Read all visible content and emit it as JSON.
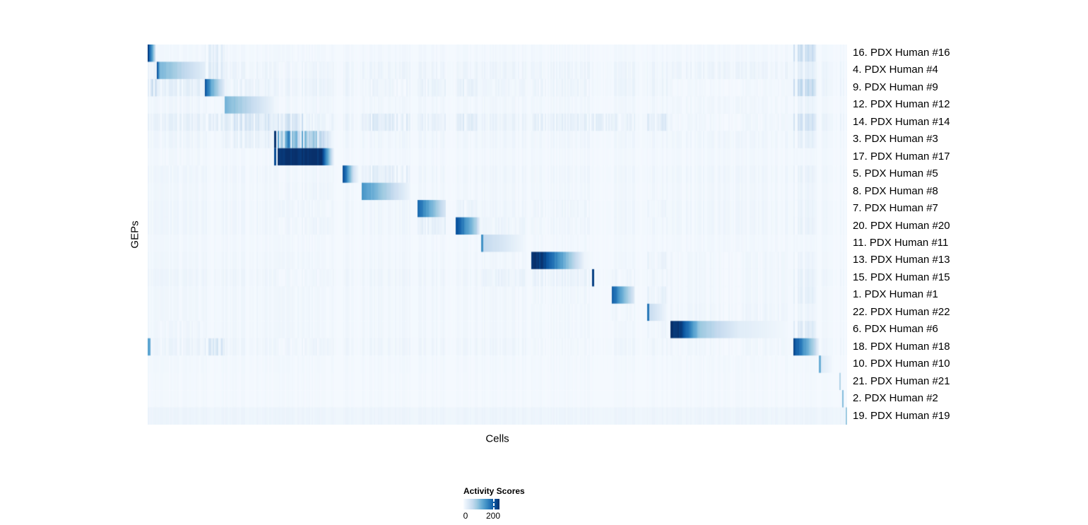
{
  "chart_data": {
    "type": "heatmap",
    "xlabel": "Cells",
    "ylabel": "GEPs",
    "colormap": "Blues",
    "colormap_stops": [
      "#f7fbff",
      "#deebf7",
      "#c6dbef",
      "#9ecae1",
      "#6baed6",
      "#4292c6",
      "#2171b5",
      "#08519c",
      "#08306b"
    ],
    "value_domain": [
      0,
      240
    ],
    "legend": {
      "title": "Activity Scores",
      "ticks": [
        0,
        200
      ],
      "tick_labels": [
        "0",
        "200"
      ]
    },
    "cluster_regions": [
      [
        0,
        0.013
      ],
      [
        0.013,
        0.082
      ],
      [
        0.082,
        0.11
      ],
      [
        0.11,
        0.181
      ],
      [
        0.181,
        0.184
      ],
      [
        0.184,
        0.265
      ],
      [
        0.279,
        0.294
      ],
      [
        0.306,
        0.375
      ],
      [
        0.386,
        0.426
      ],
      [
        0.44,
        0.471
      ],
      [
        0.477,
        0.541
      ],
      [
        0.548,
        0.634
      ],
      [
        0.635,
        0.638
      ],
      [
        0.664,
        0.696
      ],
      [
        0.714,
        0.743
      ],
      [
        0.747,
        0.915
      ],
      [
        0.923,
        0.956
      ],
      [
        0.96,
        0.981
      ],
      [
        0.989,
        0.991
      ],
      [
        0.993,
        0.995
      ],
      [
        0.998,
        1
      ]
    ],
    "rows": [
      {
        "label": "16. PDX Human #16",
        "noise": 6,
        "baseline": 3,
        "segments": [
          [
            0,
            0.011,
            235,
            60,
            "s"
          ],
          [
            0.082,
            0.11,
            25,
            25,
            "k"
          ],
          [
            0.923,
            0.956,
            48,
            48,
            "k"
          ]
        ]
      },
      {
        "label": "4. PDX Human #4",
        "noise": 14,
        "baseline": 3,
        "segments": [
          [
            0.013,
            0.018,
            210,
            110,
            "s"
          ],
          [
            0.018,
            0.082,
            110,
            25,
            "s"
          ],
          [
            0.082,
            0.11,
            30,
            30,
            "k"
          ],
          [
            0.184,
            0.265,
            12,
            12,
            "k"
          ],
          [
            0.923,
            0.956,
            22,
            22,
            "k"
          ]
        ]
      },
      {
        "label": "9. PDX Human #9",
        "noise": 16,
        "baseline": 3,
        "segments": [
          [
            0,
            0.013,
            45,
            45,
            "k"
          ],
          [
            0.082,
            0.092,
            215,
            120,
            "s"
          ],
          [
            0.092,
            0.11,
            120,
            28,
            "s"
          ],
          [
            0.013,
            0.082,
            22,
            22,
            "k"
          ],
          [
            0.11,
            0.181,
            16,
            16,
            "k"
          ],
          [
            0.184,
            0.265,
            16,
            16,
            "k"
          ],
          [
            0.306,
            0.375,
            14,
            14,
            "k"
          ],
          [
            0.386,
            0.426,
            18,
            18,
            "k"
          ],
          [
            0.44,
            0.471,
            20,
            20,
            "k"
          ],
          [
            0.477,
            0.541,
            12,
            12,
            "k"
          ],
          [
            0.548,
            0.634,
            14,
            14,
            "k"
          ],
          [
            0.747,
            0.915,
            8,
            8,
            "k"
          ],
          [
            0.923,
            0.956,
            55,
            55,
            "k"
          ]
        ]
      },
      {
        "label": "12. PDX Human #12",
        "noise": 8,
        "baseline": 3,
        "segments": [
          [
            0.11,
            0.181,
            115,
            14,
            "s"
          ],
          [
            0.013,
            0.082,
            10,
            10,
            "k"
          ],
          [
            0.184,
            0.265,
            10,
            10,
            "k"
          ],
          [
            0.923,
            0.956,
            14,
            14,
            "k"
          ]
        ]
      },
      {
        "label": "14. PDX Human #14",
        "noise": 18,
        "baseline": 3,
        "segments": [
          [
            0.013,
            0.082,
            20,
            20,
            "k"
          ],
          [
            0.082,
            0.11,
            24,
            24,
            "k"
          ],
          [
            0.11,
            0.181,
            38,
            38,
            "k"
          ],
          [
            0.186,
            0.224,
            48,
            48,
            "k"
          ],
          [
            0.306,
            0.375,
            32,
            32,
            "k"
          ],
          [
            0.386,
            0.426,
            20,
            20,
            "k"
          ],
          [
            0.44,
            0.471,
            28,
            28,
            "k"
          ],
          [
            0.548,
            0.696,
            22,
            22,
            "k"
          ],
          [
            0.714,
            0.743,
            30,
            30,
            "k"
          ],
          [
            0.747,
            0.915,
            10,
            10,
            "k"
          ],
          [
            0.923,
            0.956,
            42,
            42,
            "k"
          ]
        ]
      },
      {
        "label": "3. PDX Human #3",
        "noise": 10,
        "baseline": 3,
        "segments": [
          [
            0.181,
            0.184,
            235,
            235,
            "l"
          ],
          [
            0.186,
            0.25,
            170,
            60,
            "k"
          ],
          [
            0.25,
            0.265,
            60,
            16,
            "k"
          ],
          [
            0.013,
            0.082,
            12,
            12,
            "k"
          ],
          [
            0.11,
            0.181,
            20,
            20,
            "k"
          ],
          [
            0.923,
            0.956,
            20,
            20,
            "k"
          ]
        ]
      },
      {
        "label": "17. PDX Human #17",
        "noise": 6,
        "baseline": 3,
        "segments": [
          [
            0.181,
            0.184,
            215,
            215,
            "l"
          ],
          [
            0.186,
            0.248,
            240,
            238,
            "s"
          ],
          [
            0.248,
            0.267,
            238,
            14,
            "s"
          ],
          [
            0.013,
            0.082,
            8,
            8,
            "k"
          ]
        ]
      },
      {
        "label": "5. PDX Human #5",
        "noise": 10,
        "baseline": 3,
        "segments": [
          [
            0.279,
            0.294,
            225,
            60,
            "s"
          ],
          [
            0.294,
            0.302,
            45,
            10,
            "s"
          ],
          [
            0.306,
            0.375,
            26,
            26,
            "k"
          ],
          [
            0.186,
            0.265,
            10,
            10,
            "k"
          ],
          [
            0.923,
            0.956,
            16,
            16,
            "k"
          ]
        ]
      },
      {
        "label": "8. PDX Human #8",
        "noise": 8,
        "baseline": 3,
        "segments": [
          [
            0.306,
            0.375,
            150,
            13,
            "s"
          ],
          [
            0.184,
            0.265,
            12,
            12,
            "k"
          ],
          [
            0.923,
            0.956,
            12,
            12,
            "k"
          ]
        ]
      },
      {
        "label": "7. PDX Human #7",
        "noise": 10,
        "baseline": 3,
        "segments": [
          [
            0.386,
            0.426,
            190,
            38,
            "s"
          ],
          [
            0.44,
            0.471,
            16,
            16,
            "k"
          ],
          [
            0.548,
            0.634,
            12,
            12,
            "k"
          ],
          [
            0.714,
            0.743,
            12,
            12,
            "k"
          ],
          [
            0.923,
            0.956,
            14,
            14,
            "k"
          ]
        ]
      },
      {
        "label": "20. PDX Human #20",
        "noise": 10,
        "baseline": 3,
        "segments": [
          [
            0.44,
            0.471,
            215,
            75,
            "s"
          ],
          [
            0.471,
            0.476,
            60,
            14,
            "s"
          ],
          [
            0.386,
            0.426,
            22,
            22,
            "k"
          ],
          [
            0.477,
            0.541,
            13,
            13,
            "k"
          ],
          [
            0.184,
            0.265,
            12,
            12,
            "k"
          ],
          [
            0.923,
            0.956,
            16,
            16,
            "k"
          ]
        ]
      },
      {
        "label": "11. PDX Human #11",
        "noise": 6,
        "baseline": 3,
        "segments": [
          [
            0.477,
            0.48,
            150,
            150,
            "l"
          ],
          [
            0.48,
            0.541,
            62,
            7,
            "s"
          ],
          [
            0.548,
            0.634,
            8,
            8,
            "k"
          ]
        ]
      },
      {
        "label": "13. PDX Human #13",
        "noise": 8,
        "baseline": 3,
        "segments": [
          [
            0.548,
            0.566,
            238,
            228,
            "s"
          ],
          [
            0.566,
            0.625,
            228,
            12,
            "s"
          ],
          [
            0.625,
            0.634,
            12,
            6,
            "s"
          ],
          [
            0.714,
            0.743,
            16,
            16,
            "k"
          ],
          [
            0.747,
            0.915,
            10,
            10,
            "k"
          ],
          [
            0.923,
            0.956,
            13,
            13,
            "k"
          ]
        ]
      },
      {
        "label": "15. PDX Human #15",
        "noise": 12,
        "baseline": 3,
        "segments": [
          [
            0.635,
            0.638,
            225,
            225,
            "l"
          ],
          [
            0.477,
            0.541,
            16,
            16,
            "k"
          ],
          [
            0.548,
            0.634,
            18,
            18,
            "k"
          ],
          [
            0.664,
            0.696,
            13,
            13,
            "k"
          ],
          [
            0.747,
            0.915,
            10,
            10,
            "k"
          ],
          [
            0.184,
            0.265,
            10,
            10,
            "k"
          ],
          [
            0.923,
            0.956,
            18,
            18,
            "k"
          ]
        ]
      },
      {
        "label": "1. PDX Human #1",
        "noise": 8,
        "baseline": 3,
        "segments": [
          [
            0.664,
            0.696,
            200,
            36,
            "s"
          ],
          [
            0.714,
            0.743,
            18,
            18,
            "k"
          ],
          [
            0.747,
            0.915,
            10,
            10,
            "k"
          ],
          [
            0.548,
            0.634,
            10,
            10,
            "k"
          ],
          [
            0.923,
            0.956,
            20,
            20,
            "k"
          ]
        ]
      },
      {
        "label": "22. PDX Human #22",
        "noise": 8,
        "baseline": 3,
        "segments": [
          [
            0.714,
            0.717,
            175,
            175,
            "l"
          ],
          [
            0.717,
            0.743,
            58,
            8,
            "s"
          ],
          [
            0.664,
            0.696,
            11,
            11,
            "k"
          ],
          [
            0.747,
            0.915,
            12,
            12,
            "k"
          ],
          [
            0.923,
            0.956,
            12,
            12,
            "k"
          ]
        ]
      },
      {
        "label": "6. PDX Human #6",
        "noise": 8,
        "baseline": 3,
        "segments": [
          [
            0.747,
            0.762,
            240,
            235,
            "s"
          ],
          [
            0.762,
            0.79,
            235,
            90,
            "s"
          ],
          [
            0.79,
            0.845,
            90,
            28,
            "s"
          ],
          [
            0.845,
            0.915,
            28,
            7,
            "s"
          ],
          [
            0.013,
            0.082,
            10,
            10,
            "k"
          ],
          [
            0.714,
            0.743,
            12,
            12,
            "k"
          ],
          [
            0.923,
            0.956,
            28,
            28,
            "k"
          ]
        ]
      },
      {
        "label": "18. PDX Human #18",
        "noise": 12,
        "baseline": 3,
        "segments": [
          [
            0,
            0.004,
            130,
            130,
            "l"
          ],
          [
            0.923,
            0.956,
            220,
            60,
            "s"
          ],
          [
            0.956,
            0.961,
            45,
            10,
            "s"
          ],
          [
            0.082,
            0.11,
            38,
            38,
            "k"
          ],
          [
            0.013,
            0.082,
            14,
            14,
            "k"
          ],
          [
            0.184,
            0.265,
            12,
            12,
            "k"
          ],
          [
            0.747,
            0.915,
            10,
            10,
            "k"
          ],
          [
            0.548,
            0.634,
            9,
            9,
            "k"
          ]
        ]
      },
      {
        "label": "10. PDX Human #10",
        "noise": 5,
        "baseline": 3,
        "segments": [
          [
            0.96,
            0.963,
            120,
            120,
            "l"
          ],
          [
            0.963,
            0.981,
            30,
            5,
            "s"
          ]
        ]
      },
      {
        "label": "21. PDX Human #21",
        "noise": 4,
        "baseline": 3,
        "segments": [
          [
            0.989,
            0.991,
            75,
            75,
            "l"
          ]
        ]
      },
      {
        "label": "2. PDX Human #2",
        "noise": 4,
        "baseline": 3,
        "segments": [
          [
            0.993,
            0.995,
            105,
            105,
            "l"
          ]
        ]
      },
      {
        "label": "19. PDX Human #19",
        "noise": 6,
        "baseline": 9,
        "segments": [
          [
            0.998,
            1,
            90,
            90,
            "l"
          ]
        ]
      }
    ]
  }
}
